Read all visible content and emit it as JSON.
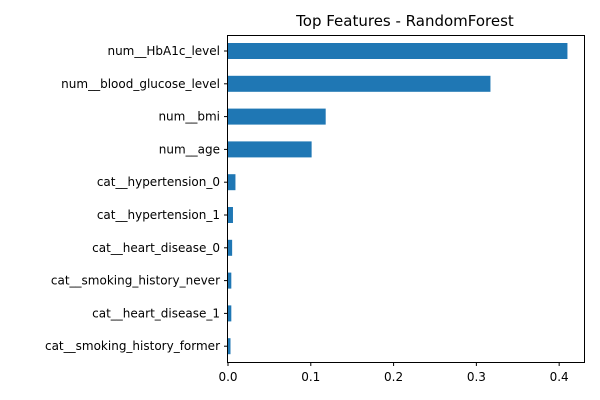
{
  "chart_data": {
    "type": "bar",
    "orientation": "horizontal",
    "title": "Top Features - RandomForest",
    "xlabel": "",
    "ylabel": "",
    "xlim": [
      0,
      0.43
    ],
    "x_ticks": [
      "0.0",
      "0.1",
      "0.2",
      "0.3",
      "0.4"
    ],
    "x_tick_values": [
      0.0,
      0.1,
      0.2,
      0.3,
      0.4
    ],
    "grid": false,
    "bar_color": "#1f77b4",
    "categories": [
      "num__HbA1c_level",
      "num__blood_glucose_level",
      "num__bmi",
      "num__age",
      "cat__hypertension_0",
      "cat__hypertension_1",
      "cat__heart_disease_0",
      "cat__smoking_history_never",
      "cat__heart_disease_1",
      "cat__smoking_history_former"
    ],
    "values": [
      0.41,
      0.317,
      0.118,
      0.101,
      0.009,
      0.006,
      0.005,
      0.004,
      0.004,
      0.003
    ]
  }
}
